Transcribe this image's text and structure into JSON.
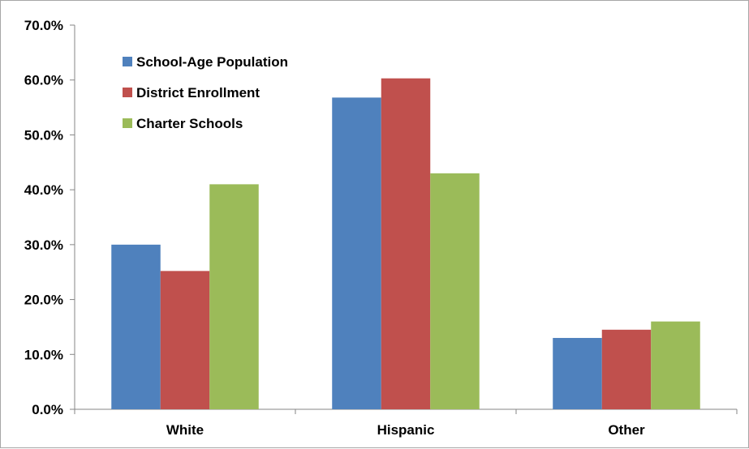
{
  "colors": {
    "school_age": "#4f81bd",
    "district": "#c0504d",
    "charter": "#9bbb59",
    "axis": "#868686"
  },
  "chart_data": {
    "type": "bar",
    "title": "",
    "xlabel": "",
    "ylabel": "",
    "categories": [
      "White",
      "Hispanic",
      "Other"
    ],
    "series": [
      {
        "name": "School-Age Population",
        "color": "#4f81bd",
        "values": [
          30.0,
          56.8,
          13.0
        ]
      },
      {
        "name": "District Enrollment",
        "color": "#c0504d",
        "values": [
          25.2,
          60.3,
          14.5
        ]
      },
      {
        "name": "Charter Schools",
        "color": "#9bbb59",
        "values": [
          41.0,
          43.0,
          16.0
        ]
      }
    ],
    "ylim": [
      0,
      70
    ],
    "yticks": [
      0,
      10,
      20,
      30,
      40,
      50,
      60,
      70
    ],
    "ytick_labels": [
      "0.0%",
      "10.0%",
      "20.0%",
      "30.0%",
      "40.0%",
      "50.0%",
      "60.0%",
      "70.0%"
    ],
    "grid": false,
    "legend_position": "top-left"
  }
}
